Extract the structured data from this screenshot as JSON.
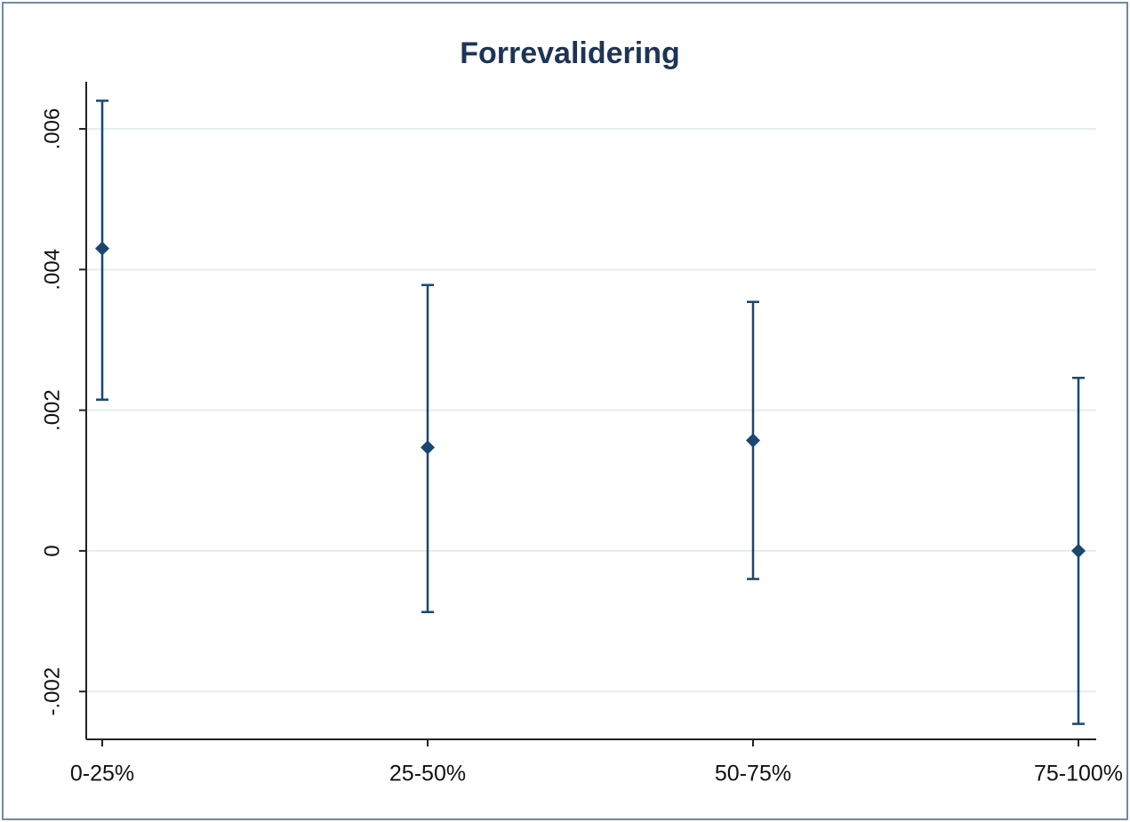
{
  "chart_data": {
    "type": "errorbar",
    "title": "Forrevalidering",
    "categories": [
      "0-25%",
      "25-50%",
      "50-75%",
      "75-100%"
    ],
    "series": [
      {
        "color": "#1a476f",
        "values": [
          0.0043,
          0.00147,
          0.00157,
          0.0
        ],
        "lower": [
          0.00215,
          -0.00087,
          -0.0004,
          -0.00246
        ],
        "upper": [
          0.0064,
          0.00378,
          0.00354,
          0.00246
        ]
      }
    ],
    "ylim": [
      -0.00268,
      0.00667
    ],
    "yticks": [
      {
        "value": -0.002,
        "label": "-.002"
      },
      0,
      {
        "value": 0.002,
        "label": ".002"
      },
      {
        "value": 0.004,
        "label": ".004"
      },
      {
        "value": 0.006,
        "label": ".006"
      }
    ],
    "grid": true
  }
}
